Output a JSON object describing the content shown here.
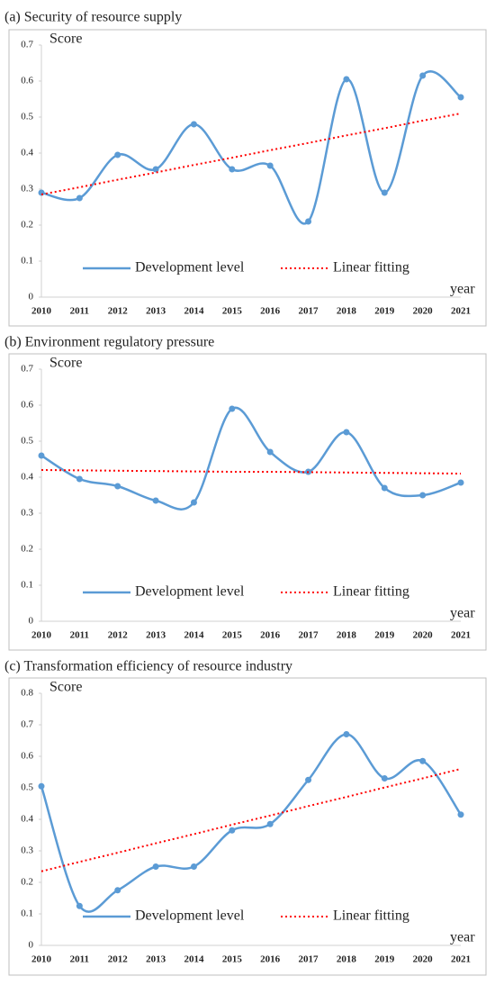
{
  "chart_data": [
    {
      "type": "line",
      "title": "(a) Security of resource supply",
      "y_label": "Score",
      "x_label": "year",
      "categories": [
        "2010",
        "2011",
        "2012",
        "2013",
        "2014",
        "2015",
        "2016",
        "2017",
        "2018",
        "2019",
        "2020",
        "2021"
      ],
      "series": [
        {
          "name": "Development level",
          "color": "#5b9bd5",
          "smooth": true,
          "markers": true,
          "values": [
            0.29,
            0.275,
            0.395,
            0.355,
            0.48,
            0.355,
            0.365,
            0.21,
            0.605,
            0.29,
            0.615,
            0.555
          ]
        },
        {
          "name": "Linear fitting",
          "color": "#ff0000",
          "dotted": true,
          "values": [
            0.285,
            0.305,
            0.326,
            0.346,
            0.367,
            0.387,
            0.408,
            0.428,
            0.449,
            0.469,
            0.49,
            0.51
          ]
        }
      ],
      "ylim": [
        0,
        0.7
      ],
      "yticks": [
        0,
        0.1,
        0.2,
        0.3,
        0.4,
        0.5,
        0.6,
        0.7
      ],
      "legend": "bottom"
    },
    {
      "type": "line",
      "title": "(b) Environment regulatory pressure",
      "y_label": "Score",
      "x_label": "year",
      "categories": [
        "2010",
        "2011",
        "2012",
        "2013",
        "2014",
        "2015",
        "2016",
        "2017",
        "2018",
        "2019",
        "2020",
        "2021"
      ],
      "series": [
        {
          "name": "Development level",
          "color": "#5b9bd5",
          "smooth": true,
          "markers": true,
          "values": [
            0.46,
            0.395,
            0.375,
            0.335,
            0.33,
            0.59,
            0.47,
            0.415,
            0.525,
            0.37,
            0.35,
            0.385
          ]
        },
        {
          "name": "Linear fitting",
          "color": "#ff0000",
          "dotted": true,
          "values": [
            0.42,
            0.419,
            0.418,
            0.417,
            0.416,
            0.415,
            0.415,
            0.414,
            0.413,
            0.412,
            0.411,
            0.41
          ]
        }
      ],
      "ylim": [
        0,
        0.7
      ],
      "yticks": [
        0,
        0.1,
        0.2,
        0.3,
        0.4,
        0.5,
        0.6,
        0.7
      ],
      "legend": "bottom"
    },
    {
      "type": "line",
      "title": "(c) Transformation efficiency of resource industry",
      "y_label": "Score",
      "x_label": "year",
      "categories": [
        "2010",
        "2011",
        "2012",
        "2013",
        "2014",
        "2015",
        "2016",
        "2017",
        "2018",
        "2019",
        "2020",
        "2021"
      ],
      "series": [
        {
          "name": "Development level",
          "color": "#5b9bd5",
          "smooth": true,
          "markers": true,
          "values": [
            0.505,
            0.125,
            0.175,
            0.25,
            0.25,
            0.365,
            0.385,
            0.525,
            0.67,
            0.53,
            0.585,
            0.415
          ]
        },
        {
          "name": "Linear fitting",
          "color": "#ff0000",
          "dotted": true,
          "values": [
            0.235,
            0.265,
            0.294,
            0.324,
            0.353,
            0.383,
            0.412,
            0.442,
            0.471,
            0.501,
            0.53,
            0.56
          ]
        }
      ],
      "ylim": [
        0,
        0.8
      ],
      "yticks": [
        0,
        0.1,
        0.2,
        0.3,
        0.4,
        0.5,
        0.6,
        0.7,
        0.8
      ],
      "legend": "bottom"
    }
  ]
}
